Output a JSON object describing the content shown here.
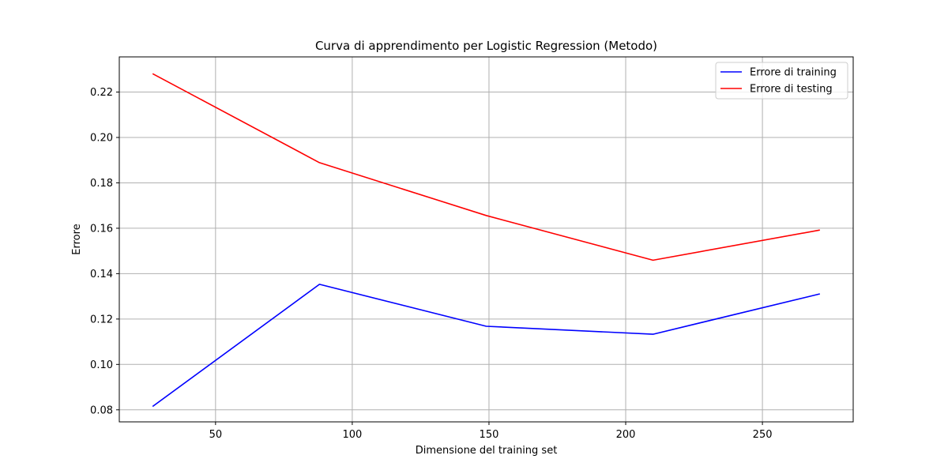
{
  "chart_data": {
    "type": "line",
    "title": "Curva di apprendimento per Logistic Regression (Metodo)",
    "xlabel": "Dimensione del training set",
    "ylabel": "Errore",
    "xlim": [
      14.8,
      283.2
    ],
    "ylim": [
      0.0747,
      0.2355
    ],
    "xticks": [
      50,
      100,
      150,
      200,
      250
    ],
    "yticks": [
      0.08,
      0.1,
      0.12,
      0.14,
      0.16,
      0.18,
      0.2,
      0.22
    ],
    "grid": true,
    "legend_position": "top-right",
    "x": [
      27,
      88,
      149,
      210,
      271
    ],
    "series": [
      {
        "name": "Errore di training",
        "color": "#0000ff",
        "values": [
          0.0815,
          0.1353,
          0.1168,
          0.1133,
          0.1311
        ]
      },
      {
        "name": "Errore di testing",
        "color": "#ff0000",
        "values": [
          0.2281,
          0.1889,
          0.1656,
          0.1459,
          0.1592
        ]
      }
    ]
  }
}
